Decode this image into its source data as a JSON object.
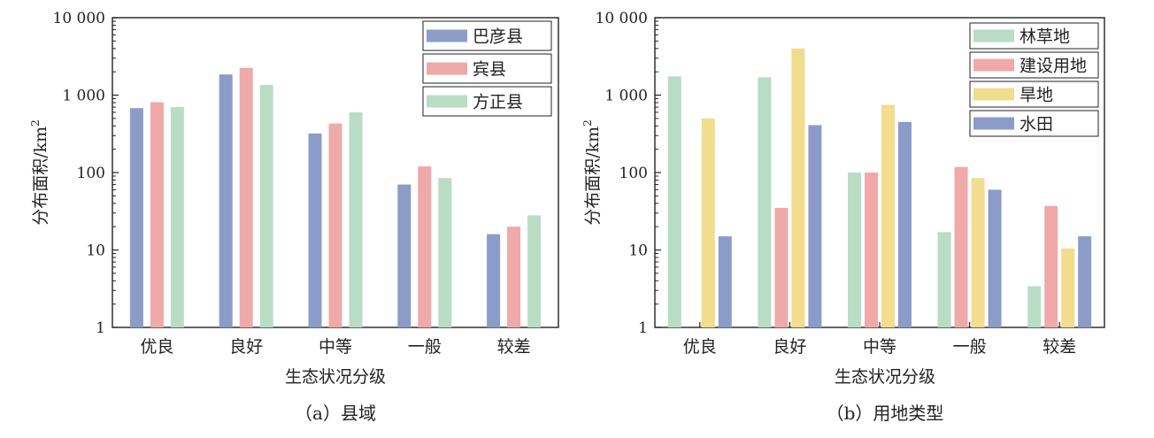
{
  "figure": {
    "panels": [
      {
        "caption": "（a）县域",
        "xlabel": "生态状况分级",
        "ylabel": "分布面积/km",
        "ylabel_sup": "2",
        "yticks": [
          "1",
          "10",
          "100",
          "1 000",
          "10 000"
        ],
        "legend": [
          "巴彦县",
          "宾县",
          "方正县"
        ]
      },
      {
        "caption": "（b）用地类型",
        "xlabel": "生态状况分级",
        "ylabel": "分布面积/km",
        "ylabel_sup": "2",
        "yticks": [
          "1",
          "10",
          "100",
          "1 000",
          "10 000"
        ],
        "legend": [
          "林草地",
          "建设用地",
          "旱地",
          "水田"
        ]
      }
    ]
  },
  "chart_data": [
    {
      "type": "bar",
      "title": "（a）县域",
      "xlabel": "生态状况分级",
      "ylabel": "分布面积/km2",
      "yscale": "log",
      "ylim": [
        1,
        10000
      ],
      "grid": false,
      "legend_position": "top-right",
      "categories": [
        "优良",
        "良好",
        "中等",
        "一般",
        "较差"
      ],
      "series": [
        {
          "name": "巴彦县",
          "color": "#8c9cc8",
          "values": [
            680,
            1850,
            320,
            70,
            16
          ]
        },
        {
          "name": "宾县",
          "color": "#efa9a8",
          "values": [
            810,
            2250,
            430,
            120,
            20
          ]
        },
        {
          "name": "方正县",
          "color": "#b9dcc5",
          "values": [
            700,
            1350,
            600,
            85,
            28
          ]
        }
      ]
    },
    {
      "type": "bar",
      "title": "（b）用地类型",
      "xlabel": "生态状况分级",
      "ylabel": "分布面积/km2",
      "yscale": "log",
      "ylim": [
        1,
        10000
      ],
      "grid": false,
      "legend_position": "top-right",
      "categories": [
        "优良",
        "良好",
        "中等",
        "一般",
        "较差"
      ],
      "series": [
        {
          "name": "林草地",
          "color": "#b9dcc5",
          "values": [
            1750,
            1700,
            100,
            17,
            3.4
          ]
        },
        {
          "name": "建设用地",
          "color": "#efa9a8",
          "values": [
            null,
            35,
            100,
            118,
            37
          ]
        },
        {
          "name": "旱地",
          "color": "#f2dc8e",
          "values": [
            500,
            4000,
            750,
            85,
            10.5
          ]
        },
        {
          "name": "水田",
          "color": "#8c9cc8",
          "values": [
            15,
            410,
            450,
            60,
            15
          ]
        }
      ]
    }
  ]
}
